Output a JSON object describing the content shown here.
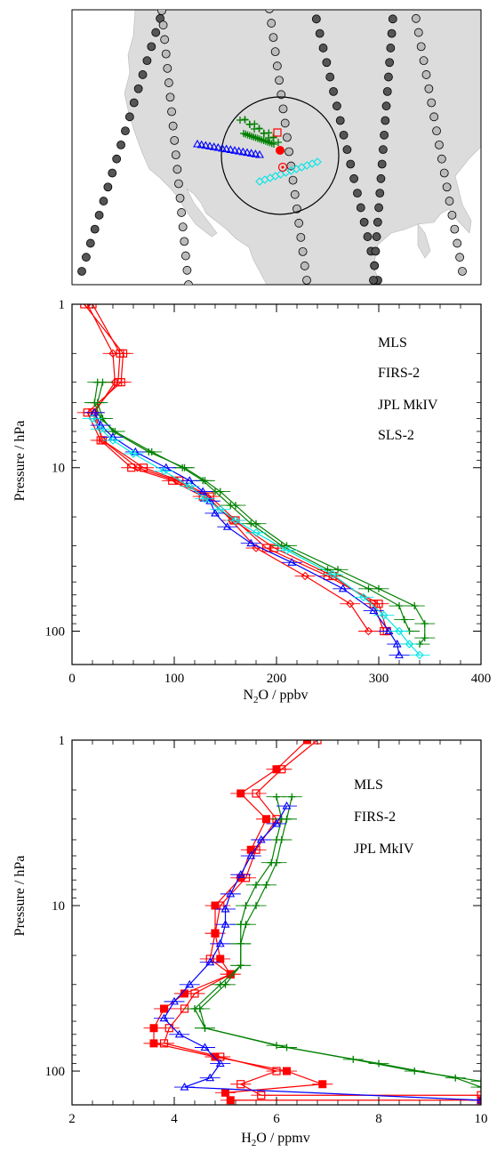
{
  "map_panel": {
    "land_color": "#dcdcdc",
    "circle_color": "#000000",
    "markers": {
      "mls": {
        "color": "#ff0000",
        "shapes": [
          "open-square",
          "filled-circle",
          "circled-dot"
        ]
      },
      "firs2": {
        "color": "#008000",
        "shape": "plus"
      },
      "mkiv": {
        "color": "#0000ff",
        "shape": "triangle"
      },
      "sls2": {
        "color": "#00e5e5",
        "shape": "diamond"
      }
    }
  },
  "chart_data": [
    {
      "type": "line",
      "xlabel": "N2O / ppbv",
      "xlabel_main": "N",
      "xlabel_sub": "2",
      "xlabel_rest": "O / ppbv",
      "ylabel": "Pressure / hPa",
      "xlim": [
        0,
        400
      ],
      "ylim": [
        1,
        160
      ],
      "yscale": "log",
      "y_inverted": true,
      "xticks": [
        "0",
        "100",
        "200",
        "300",
        "400"
      ],
      "yticks": [
        "1",
        "10",
        "100"
      ],
      "legend_position": "top-right",
      "series": [
        {
          "name": "MLS",
          "color": "#ff0000",
          "marker": "square",
          "x": [
            20,
            47,
            45,
            20,
            30,
            70,
            105,
            135,
            160,
            190,
            250,
            300,
            308
          ],
          "y": [
            1.0,
            2.0,
            3.0,
            4.6,
            6.8,
            10.0,
            12.0,
            15.0,
            21.0,
            31.0,
            46.0,
            68.0,
            100.0
          ]
        },
        {
          "name": "MLS",
          "color": "#ff0000",
          "marker": "square",
          "x": [
            12,
            50,
            48,
            15,
            28,
            58,
            98,
            128,
            158,
            198,
            255,
            295,
            305
          ],
          "y": [
            1.0,
            2.0,
            3.0,
            4.6,
            6.8,
            10.0,
            12.0,
            15.0,
            21.0,
            31.0,
            46.0,
            68.0,
            100.0
          ]
        },
        {
          "name": "MLS",
          "color": "#ff0000",
          "marker": "diamond",
          "x": [
            15,
            40,
            42,
            22,
            30,
            64,
            102,
            132,
            156,
            180,
            228,
            272,
            290
          ],
          "y": [
            1.0,
            2.0,
            3.0,
            4.6,
            6.8,
            10.0,
            12.0,
            15.0,
            21.0,
            31.0,
            46.0,
            68.0,
            100.0
          ]
        },
        {
          "name": "FIRS-2",
          "color": "#008000",
          "marker": "plus",
          "x": [
            30,
            25,
            30,
            40,
            75,
            110,
            130,
            145,
            160,
            180,
            210,
            260,
            300,
            335,
            345,
            345,
            340
          ],
          "y": [
            3.0,
            4.0,
            5.0,
            6.0,
            8.0,
            10.0,
            12.0,
            14.0,
            17.0,
            22.0,
            30.0,
            42.0,
            55.0,
            70.0,
            90.0,
            110.0,
            120.0
          ]
        },
        {
          "name": "FIRS-2",
          "color": "#008000",
          "marker": "plus",
          "x": [
            25,
            22,
            28,
            42,
            78,
            108,
            128,
            140,
            155,
            175,
            205,
            250,
            290,
            320,
            325,
            330
          ],
          "y": [
            3.0,
            4.0,
            5.0,
            6.0,
            8.0,
            10.0,
            12.0,
            14.0,
            17.0,
            22.0,
            30.0,
            42.0,
            55.0,
            70.0,
            85.0,
            100.0
          ]
        },
        {
          "name": "JPL MkIV",
          "color": "#0000ff",
          "marker": "triangle",
          "x": [
            22,
            28,
            40,
            62,
            92,
            115,
            128,
            135,
            140,
            152,
            175,
            215,
            265,
            295,
            310,
            318,
            320
          ],
          "y": [
            4.6,
            5.5,
            6.5,
            8.0,
            10.0,
            12.0,
            14.0,
            16.0,
            19.0,
            23.0,
            29.0,
            38.0,
            55.0,
            75.0,
            100.0,
            120.0,
            140.0
          ]
        },
        {
          "name": "SLS-2",
          "color": "#00e5e5",
          "marker": "diamond",
          "x": [
            20,
            28,
            40,
            60,
            90,
            115,
            130,
            145,
            160,
            180,
            210,
            255,
            285,
            305,
            320,
            330,
            340
          ],
          "y": [
            5.0,
            5.8,
            6.8,
            8.2,
            10.5,
            13.0,
            15.5,
            18.0,
            21.0,
            25.0,
            32.0,
            45.0,
            62.0,
            80.0,
            100.0,
            120.0,
            140.0
          ]
        }
      ]
    },
    {
      "type": "line",
      "xlabel": "H2O / ppmv",
      "xlabel_main": "H",
      "xlabel_sub": "2",
      "xlabel_rest": "O / ppmv",
      "ylabel": "Pressure / hPa",
      "xlim": [
        2,
        10
      ],
      "ylim": [
        1,
        160
      ],
      "yscale": "log",
      "y_inverted": true,
      "xticks": [
        "2",
        "4",
        "6",
        "8",
        "10"
      ],
      "yticks": [
        "1",
        "10",
        "100"
      ],
      "legend_position": "top-right",
      "series": [
        {
          "name": "MLS",
          "color": "#ff0000",
          "marker": "filled-square",
          "x": [
            6.6,
            6.0,
            5.3,
            5.8,
            5.5,
            5.3,
            4.8,
            4.8,
            4.9,
            5.1,
            4.2,
            3.8,
            3.6,
            3.6,
            4.8,
            6.2,
            6.9,
            5.0,
            5.1,
            10.0
          ],
          "y": [
            1.0,
            1.5,
            2.1,
            3.0,
            4.6,
            6.8,
            10.0,
            14.7,
            21.0,
            26.0,
            34.0,
            42.0,
            55.0,
            68.0,
            82.0,
            100.0,
            120.0,
            135.0,
            150.0,
            150.0
          ]
        },
        {
          "name": "MLS",
          "color": "#ff0000",
          "marker": "open-square",
          "x": [
            6.8,
            6.1,
            5.6,
            6.0,
            5.6,
            5.4,
            4.9,
            4.8,
            4.7,
            5.1,
            4.4,
            4.2,
            3.9,
            3.8,
            4.9,
            6.0,
            5.3,
            5.7,
            10.0
          ],
          "y": [
            1.0,
            1.5,
            2.1,
            3.0,
            4.6,
            6.8,
            10.0,
            14.7,
            21.0,
            26.0,
            34.0,
            42.0,
            55.0,
            68.0,
            82.0,
            100.0,
            120.0,
            140.0,
            140.0
          ]
        },
        {
          "name": "FIRS-2",
          "color": "#008000",
          "marker": "plus",
          "x": [
            6.0,
            6.1,
            6.0,
            5.9,
            5.6,
            5.4,
            5.3,
            5.3,
            5.3,
            4.9,
            4.4,
            4.6,
            6.0,
            7.5,
            8.7,
            10.0
          ],
          "y": [
            2.2,
            3.0,
            4.0,
            5.5,
            7.5,
            10.0,
            13.0,
            17.0,
            23.0,
            30.0,
            42.0,
            55.0,
            70.0,
            85.0,
            100.0,
            115.0
          ]
        },
        {
          "name": "FIRS-2",
          "color": "#008000",
          "marker": "plus",
          "x": [
            6.3,
            6.2,
            6.1,
            6.0,
            5.8,
            5.6,
            5.4,
            5.3,
            5.3,
            5.0,
            4.5,
            4.6,
            6.2,
            8.0,
            9.5,
            10.0
          ],
          "y": [
            2.2,
            3.0,
            4.0,
            5.5,
            7.5,
            10.0,
            13.0,
            17.0,
            23.0,
            30.0,
            42.0,
            55.0,
            72.0,
            90.0,
            110.0,
            125.0
          ]
        },
        {
          "name": "JPL MkIV",
          "color": "#0000ff",
          "marker": "triangle",
          "x": [
            6.2,
            6.0,
            5.7,
            5.5,
            5.3,
            5.1,
            5.0,
            5.0,
            4.9,
            4.7,
            4.3,
            4.0,
            3.8,
            4.1,
            4.6,
            4.9,
            4.7,
            4.2,
            10.0
          ],
          "y": [
            2.5,
            3.2,
            4.0,
            5.0,
            6.5,
            8.5,
            10.5,
            13.0,
            17.0,
            22.0,
            30.0,
            38.0,
            48.0,
            60.0,
            72.0,
            90.0,
            110.0,
            125.0,
            150.0
          ]
        }
      ]
    }
  ]
}
